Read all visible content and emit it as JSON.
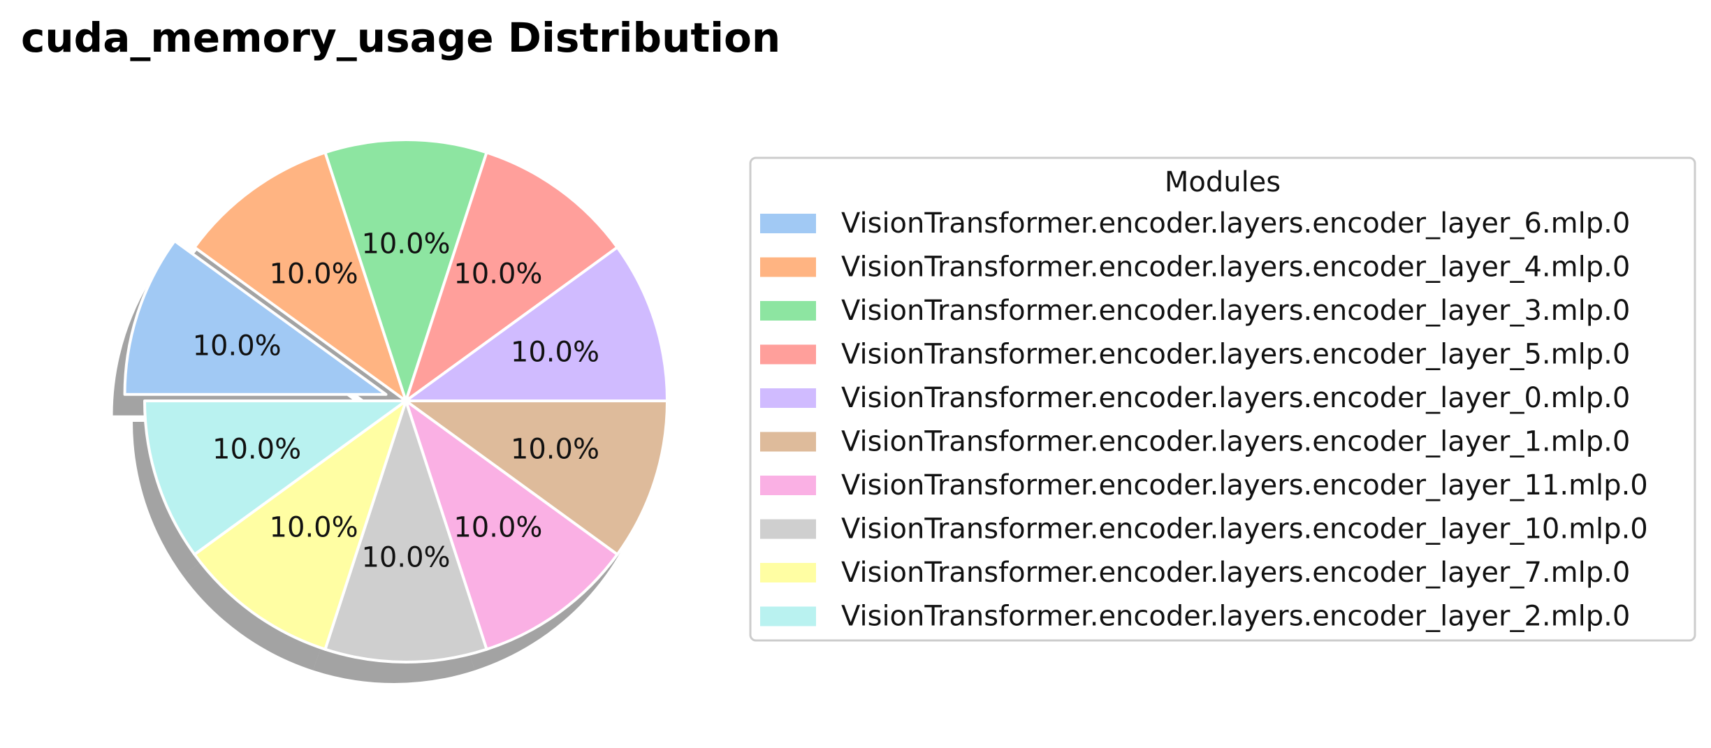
{
  "chart_data": {
    "type": "pie",
    "title": "cuda_memory_usage Distribution",
    "legend_title": "Modules",
    "legend_position": "right",
    "shadow": true,
    "start_angle_deg": 0,
    "explode": [
      0.08,
      0,
      0,
      0,
      0,
      0,
      0,
      0,
      0,
      0
    ],
    "slices": [
      {
        "label": "VisionTransformer.encoder.layers.encoder_layer_6.mlp.0",
        "value": 10.0,
        "pct_label": "10.0%",
        "color": "#a1c9f4"
      },
      {
        "label": "VisionTransformer.encoder.layers.encoder_layer_4.mlp.0",
        "value": 10.0,
        "pct_label": "10.0%",
        "color": "#ffb482"
      },
      {
        "label": "VisionTransformer.encoder.layers.encoder_layer_3.mlp.0",
        "value": 10.0,
        "pct_label": "10.0%",
        "color": "#8de5a1"
      },
      {
        "label": "VisionTransformer.encoder.layers.encoder_layer_5.mlp.0",
        "value": 10.0,
        "pct_label": "10.0%",
        "color": "#ff9f9b"
      },
      {
        "label": "VisionTransformer.encoder.layers.encoder_layer_0.mlp.0",
        "value": 10.0,
        "pct_label": "10.0%",
        "color": "#d0bbff"
      },
      {
        "label": "VisionTransformer.encoder.layers.encoder_layer_1.mlp.0",
        "value": 10.0,
        "pct_label": "10.0%",
        "color": "#debb9b"
      },
      {
        "label": "VisionTransformer.encoder.layers.encoder_layer_11.mlp.0",
        "value": 10.0,
        "pct_label": "10.0%",
        "color": "#fab0e4"
      },
      {
        "label": "VisionTransformer.encoder.layers.encoder_layer_10.mlp.0",
        "value": 10.0,
        "pct_label": "10.0%",
        "color": "#cfcfcf"
      },
      {
        "label": "VisionTransformer.encoder.layers.encoder_layer_7.mlp.0",
        "value": 10.0,
        "pct_label": "10.0%",
        "color": "#fffea3"
      },
      {
        "label": "VisionTransformer.encoder.layers.encoder_layer_2.mlp.0",
        "value": 10.0,
        "pct_label": "10.0%",
        "color": "#b9f2f0"
      }
    ]
  }
}
